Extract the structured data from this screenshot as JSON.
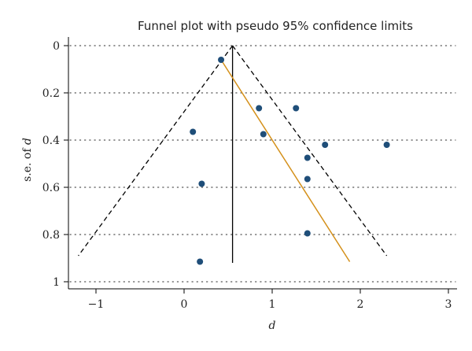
{
  "chart_data": {
    "type": "scatter",
    "title": "Funnel plot with pseudo 95% confidence limits",
    "xlabel": "d",
    "ylabel_prefix": "s.e. of ",
    "ylabel_var": "d",
    "xlim": [
      -1.3,
      3.05
    ],
    "ylim": [
      0,
      1.05
    ],
    "y_reversed": true,
    "grid": "horizontal-dotted",
    "x_ticks": [
      -1,
      0,
      1,
      2,
      3
    ],
    "x_tick_labels": [
      "−1",
      "0",
      "1",
      "2",
      "3"
    ],
    "y_ticks": [
      0,
      0.2,
      0.4,
      0.6,
      0.8,
      1
    ],
    "y_tick_labels": [
      "0",
      "0.2",
      "0.4",
      "0.6",
      "0.8",
      "1"
    ],
    "points": [
      {
        "x": 0.42,
        "y": 0.06
      },
      {
        "x": 0.85,
        "y": 0.265
      },
      {
        "x": 1.27,
        "y": 0.265
      },
      {
        "x": 0.1,
        "y": 0.365
      },
      {
        "x": 0.9,
        "y": 0.375
      },
      {
        "x": 1.6,
        "y": 0.42
      },
      {
        "x": 2.3,
        "y": 0.42
      },
      {
        "x": 1.4,
        "y": 0.475
      },
      {
        "x": 1.4,
        "y": 0.565
      },
      {
        "x": 0.2,
        "y": 0.585
      },
      {
        "x": 1.4,
        "y": 0.795
      },
      {
        "x": 0.18,
        "y": 0.915
      }
    ],
    "pooled_estimate": {
      "x": 0.55,
      "y_from": 0.0,
      "y_to": 0.92
    },
    "confidence_limits": {
      "apex": {
        "x": 0.55,
        "y": 0.0
      },
      "left_end": {
        "x": -1.2,
        "y": 0.89
      },
      "right_end": {
        "x": 2.3,
        "y": 0.89
      }
    },
    "regression_line": {
      "x1": 0.42,
      "y1": 0.06,
      "x2": 1.88,
      "y2": 0.915
    },
    "colors": {
      "points": "#1f4e79",
      "regression": "#d4901a",
      "limits": "#000000",
      "pooled": "#000000",
      "grid": "#555555",
      "axis": "#000000"
    }
  }
}
